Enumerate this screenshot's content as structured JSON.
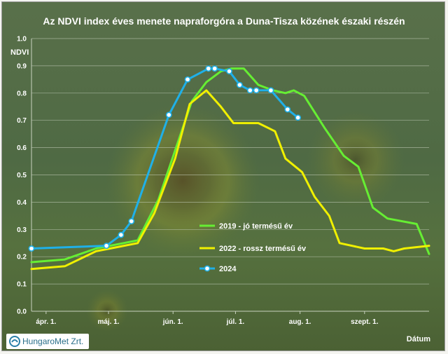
{
  "chart_data": {
    "type": "line",
    "title": "Az NDVI index éves menete napraforgóra a Duna-Tisza közének északi részén",
    "ylabel": "NDVI",
    "xlabel": "Dátum",
    "ylim": [
      0,
      1.0
    ],
    "yticks": [
      "0.0",
      "0.1",
      "0.2",
      "0.3",
      "0.4",
      "0.5",
      "0.6",
      "0.7",
      "0.8",
      "0.9",
      "1.0"
    ],
    "xlim": [
      "2024-03-25",
      "2024-10-02"
    ],
    "xticks": [
      {
        "date": "2024-04-01",
        "label": "ápr. 1."
      },
      {
        "date": "2024-05-01",
        "label": "máj. 1."
      },
      {
        "date": "2024-06-01",
        "label": "jún. 1."
      },
      {
        "date": "2024-07-01",
        "label": "júl. 1."
      },
      {
        "date": "2024-08-01",
        "label": "aug. 1."
      },
      {
        "date": "2024-09-01",
        "label": "szept. 1."
      }
    ],
    "grid": true,
    "legend_position": "center-right",
    "series": [
      {
        "name": "2019 - jó termésű év",
        "color": "#66ee33",
        "marker": false,
        "points": [
          [
            "2024-03-25",
            0.18
          ],
          [
            "2024-04-10",
            0.19
          ],
          [
            "2024-04-25",
            0.23
          ],
          [
            "2024-05-05",
            0.245
          ],
          [
            "2024-05-15",
            0.26
          ],
          [
            "2024-05-25",
            0.41
          ],
          [
            "2024-06-02",
            0.59
          ],
          [
            "2024-06-10",
            0.77
          ],
          [
            "2024-06-17",
            0.84
          ],
          [
            "2024-06-24",
            0.88
          ],
          [
            "2024-06-29",
            0.89
          ],
          [
            "2024-07-05",
            0.89
          ],
          [
            "2024-07-12",
            0.83
          ],
          [
            "2024-07-19",
            0.81
          ],
          [
            "2024-07-25",
            0.8
          ],
          [
            "2024-07-29",
            0.81
          ],
          [
            "2024-08-03",
            0.79
          ],
          [
            "2024-08-13",
            0.67
          ],
          [
            "2024-08-22",
            0.57
          ],
          [
            "2024-08-29",
            0.53
          ],
          [
            "2024-09-05",
            0.38
          ],
          [
            "2024-09-12",
            0.34
          ],
          [
            "2024-09-26",
            0.32
          ],
          [
            "2024-10-02",
            0.21
          ]
        ]
      },
      {
        "name": "2022 - rossz termésű év",
        "color": "#f0f000",
        "marker": false,
        "points": [
          [
            "2024-03-25",
            0.155
          ],
          [
            "2024-04-10",
            0.165
          ],
          [
            "2024-04-25",
            0.22
          ],
          [
            "2024-05-05",
            0.235
          ],
          [
            "2024-05-15",
            0.25
          ],
          [
            "2024-05-23",
            0.36
          ],
          [
            "2024-06-02",
            0.56
          ],
          [
            "2024-06-09",
            0.76
          ],
          [
            "2024-06-17",
            0.81
          ],
          [
            "2024-06-24",
            0.75
          ],
          [
            "2024-06-30",
            0.69
          ],
          [
            "2024-07-12",
            0.69
          ],
          [
            "2024-07-20",
            0.66
          ],
          [
            "2024-07-25",
            0.56
          ],
          [
            "2024-08-02",
            0.51
          ],
          [
            "2024-08-08",
            0.42
          ],
          [
            "2024-08-15",
            0.35
          ],
          [
            "2024-08-20",
            0.25
          ],
          [
            "2024-09-01",
            0.23
          ],
          [
            "2024-09-10",
            0.23
          ],
          [
            "2024-09-15",
            0.22
          ],
          [
            "2024-09-20",
            0.23
          ],
          [
            "2024-10-02",
            0.24
          ]
        ]
      },
      {
        "name": "2024",
        "color": "#1fb0e8",
        "marker": true,
        "points": [
          [
            "2024-03-25",
            0.23
          ],
          [
            "2024-04-30",
            0.24
          ],
          [
            "2024-05-07",
            0.28
          ],
          [
            "2024-05-12",
            0.33
          ],
          [
            "2024-05-30",
            0.72
          ],
          [
            "2024-06-08",
            0.85
          ],
          [
            "2024-06-18",
            0.89
          ],
          [
            "2024-06-21",
            0.89
          ],
          [
            "2024-06-28",
            0.88
          ],
          [
            "2024-07-03",
            0.83
          ],
          [
            "2024-07-08",
            0.81
          ],
          [
            "2024-07-11",
            0.81
          ],
          [
            "2024-07-18",
            0.81
          ],
          [
            "2024-07-26",
            0.74
          ],
          [
            "2024-07-31",
            0.71
          ]
        ]
      }
    ]
  },
  "logo": {
    "text": "HungaroMet Zrt."
  }
}
